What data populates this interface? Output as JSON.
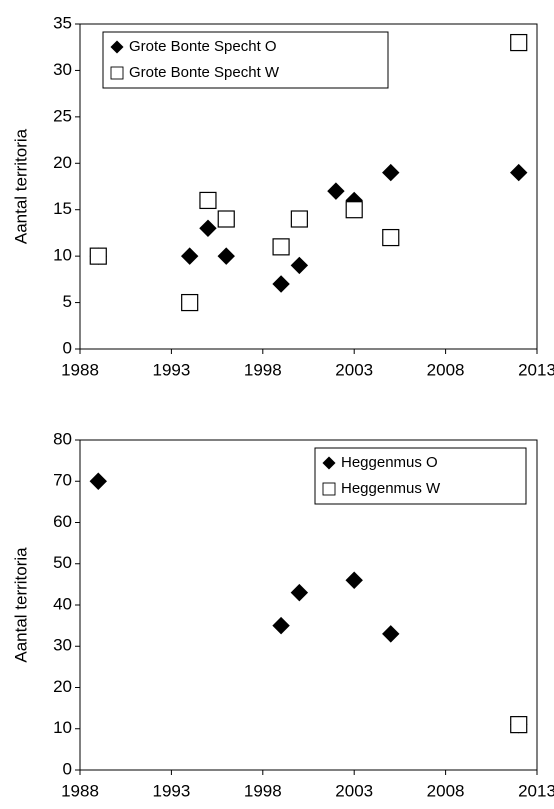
{
  "chart_data": [
    {
      "type": "scatter",
      "ylabel": "Aantal territoria",
      "xlim": [
        1988,
        2013
      ],
      "xticks": [
        1988,
        1993,
        1998,
        2003,
        2008,
        2013
      ],
      "ylim": [
        0,
        35
      ],
      "yticks": [
        0,
        5,
        10,
        15,
        20,
        25,
        30,
        35
      ],
      "legend": "upper left",
      "series": [
        {
          "name": "Grote Bonte Specht O",
          "marker": "diamond",
          "color": "#000000",
          "x": [
            1989,
            1994,
            1995,
            1996,
            1999,
            2000,
            2002,
            2003,
            2005,
            2012
          ],
          "values": [
            10,
            10,
            13,
            10,
            7,
            9,
            17,
            16,
            19,
            19
          ]
        },
        {
          "name": "Grote Bonte Specht W",
          "marker": "square",
          "color": "#000000",
          "fill": "#ffffff",
          "x": [
            1989,
            1994,
            1995,
            1996,
            1999,
            2000,
            2003,
            2005,
            2012
          ],
          "values": [
            10,
            5,
            16,
            14,
            11,
            14,
            15,
            12,
            33
          ]
        }
      ]
    },
    {
      "type": "scatter",
      "ylabel": "Aantal territoria",
      "xlim": [
        1988,
        2013
      ],
      "xticks": [
        1988,
        1993,
        1998,
        2003,
        2008,
        2013
      ],
      "ylim": [
        0,
        80
      ],
      "yticks": [
        0,
        10,
        20,
        30,
        40,
        50,
        60,
        70,
        80
      ],
      "legend": "upper right",
      "series": [
        {
          "name": "Heggenmus O",
          "marker": "diamond",
          "color": "#000000",
          "x": [
            1989,
            1999,
            2000,
            2003,
            2005,
            2012
          ],
          "values": [
            70,
            35,
            43,
            46,
            33,
            11
          ]
        },
        {
          "name": "Heggenmus W",
          "marker": "square",
          "color": "#000000",
          "fill": "#ffffff",
          "x": [
            2012
          ],
          "values": [
            11
          ]
        }
      ]
    }
  ]
}
